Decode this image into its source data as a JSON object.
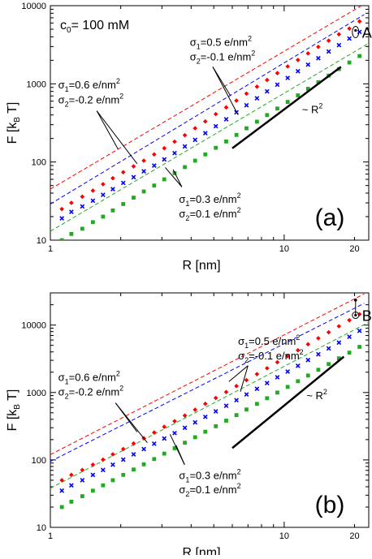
{
  "chart_data": [
    {
      "type": "scatter",
      "panel_label": "(a)",
      "annotation_top": "c",
      "annotation_top_sub": "0",
      "annotation_top_rest": "= 100 mM",
      "xlabel": "R [nm]",
      "ylabel": "F [k",
      "ylabel_sub": "B",
      "ylabel_end": " T]",
      "x_scale": "log",
      "y_scale": "log",
      "xlim": [
        1,
        23
      ],
      "ylim": [
        10,
        10000
      ],
      "x_ticks": [
        {
          "v": 1,
          "label": "1"
        },
        {
          "v": 10,
          "label": "10"
        },
        {
          "v": 20,
          "label": "20"
        }
      ],
      "y_ticks": [
        {
          "v": 10,
          "label": "10"
        },
        {
          "v": 100,
          "label": "100"
        },
        {
          "v": 1000,
          "label": "1000"
        },
        {
          "v": 10000,
          "label": "10000"
        }
      ],
      "point_label": "A",
      "slope_label": "~ R",
      "slope_label_sup": "2",
      "slope_line": {
        "x": [
          6,
          17.5
        ],
        "y": [
          150,
          1650
        ]
      },
      "series": [
        {
          "key": "s1",
          "color": "#ff0000",
          "marker": "diamond",
          "x": [
            1.12,
            1.23,
            1.37,
            1.52,
            1.68,
            1.85,
            2.05,
            2.27,
            2.51,
            2.78,
            3.07,
            3.4,
            3.76,
            4.16,
            4.6,
            5.1,
            5.65,
            6.25,
            6.9,
            7.65,
            8.45,
            9.35,
            10.35,
            11.45,
            12.65,
            14.0,
            15.5,
            17.15,
            19.0,
            21.0
          ],
          "y": [
            25,
            30,
            36,
            43,
            52,
            62,
            74,
            88,
            104,
            125,
            150,
            182,
            220,
            270,
            330,
            410,
            500,
            610,
            750,
            920,
            1120,
            1370,
            1670,
            2020,
            2450,
            2970,
            3570,
            4300,
            5100,
            6300
          ]
        },
        {
          "key": "s2",
          "color": "#0000ff",
          "marker": "x",
          "x": [
            1.12,
            1.23,
            1.37,
            1.52,
            1.68,
            1.85,
            2.05,
            2.27,
            2.51,
            2.78,
            3.07,
            3.4,
            3.76,
            4.16,
            4.6,
            5.1,
            5.65,
            6.25,
            6.9,
            7.65,
            8.45,
            9.35,
            10.35,
            11.45,
            12.65,
            14.0,
            15.5,
            17.15,
            19.0,
            21.0
          ],
          "y": [
            19,
            23,
            27,
            32,
            38,
            45,
            54,
            64,
            76,
            90,
            108,
            130,
            158,
            192,
            234,
            287,
            352,
            433,
            532,
            654,
            800,
            975,
            1190,
            1450,
            1760,
            2130,
            2590,
            3130,
            3800,
            4620
          ]
        },
        {
          "key": "s3",
          "color": "#22aa22",
          "marker": "square",
          "x": [
            1.12,
            1.23,
            1.37,
            1.52,
            1.68,
            1.85,
            2.05,
            2.27,
            2.51,
            2.78,
            3.07,
            3.4,
            3.76,
            4.16,
            4.6,
            5.1,
            5.65,
            6.25,
            6.9,
            7.65,
            8.45,
            9.35,
            10.35,
            11.45,
            12.65,
            14.0,
            15.5,
            17.15,
            19.0,
            21.0
          ],
          "y": [
            10,
            12,
            14,
            17,
            20,
            24,
            29,
            35,
            42,
            50,
            60,
            72,
            86,
            104,
            125,
            152,
            183,
            222,
            270,
            328,
            398,
            483,
            587,
            712,
            864,
            1050,
            1275,
            1545,
            1875,
            2270
          ]
        }
      ],
      "dashed_lines": [
        {
          "color": "#ff0000",
          "x": [
            1,
            22
          ],
          "y": [
            45,
            10500
          ]
        },
        {
          "color": "#0000ff",
          "x": [
            1,
            22
          ],
          "y": [
            29,
            7700
          ]
        },
        {
          "color": "#22aa22",
          "x": [
            1,
            23
          ],
          "y": [
            13,
            3300
          ]
        }
      ],
      "annotations": [
        {
          "sig1": "0.6 e/nm",
          "sig2": "-0.2 e/nm",
          "x": 1.08,
          "y1": 870,
          "y2": 560,
          "leaders": [
            [
              1.58,
              450,
              1.95,
              145
            ],
            [
              1.58,
              450,
              2.35,
              95
            ]
          ]
        },
        {
          "sig1": "0.5 e/nm",
          "sig2": "-0.1 e/nm",
          "x": 3.95,
          "y1": 3050,
          "y2": 2000,
          "leaders": [
            [
              4.95,
              1650,
              5.9,
              700
            ],
            [
              4.95,
              1650,
              6.35,
              400
            ]
          ]
        },
        {
          "sig1": "0.3 e/nm",
          "sig2": "0.1 e/nm",
          "x": 3.55,
          "y1": 30,
          "y2": 19.5,
          "leaders": [
            [
              3.65,
              48,
              3.1,
              85
            ],
            [
              3.65,
              48,
              3.35,
              80
            ]
          ]
        }
      ]
    },
    {
      "type": "scatter",
      "panel_label": "(b)",
      "xlabel": "R [nm]",
      "ylabel": "F [k",
      "ylabel_sub": "B",
      "ylabel_end": " T]",
      "x_scale": "log",
      "y_scale": "log",
      "xlim": [
        1,
        23
      ],
      "ylim": [
        10,
        30000
      ],
      "x_ticks": [
        {
          "v": 1,
          "label": "1"
        },
        {
          "v": 10,
          "label": "10"
        },
        {
          "v": 20,
          "label": "20"
        }
      ],
      "y_ticks": [
        {
          "v": 10,
          "label": "10"
        },
        {
          "v": 100,
          "label": "100"
        },
        {
          "v": 1000,
          "label": "1000"
        },
        {
          "v": 10000,
          "label": "10000"
        }
      ],
      "point_label": "B",
      "slope_label": "~ R",
      "slope_label_sup": "2",
      "slope_line": {
        "x": [
          6,
          18
        ],
        "y": [
          150,
          3400
        ]
      },
      "series": [
        {
          "key": "s1",
          "color": "#ff0000",
          "marker": "diamond",
          "x": [
            1.12,
            1.23,
            1.37,
            1.52,
            1.68,
            1.85,
            2.05,
            2.27,
            2.51,
            2.78,
            3.07,
            3.4,
            3.76,
            4.16,
            4.6,
            5.1,
            5.65,
            6.25,
            6.9,
            7.65,
            8.45,
            9.35,
            10.35,
            11.45,
            12.65,
            14.0,
            15.5,
            17.15,
            19.0,
            21.0
          ],
          "y": [
            50,
            60,
            71,
            85,
            101,
            121,
            145,
            175,
            210,
            255,
            310,
            375,
            455,
            555,
            680,
            830,
            1015,
            1245,
            1525,
            1870,
            2290,
            2810,
            3450,
            4230,
            5190,
            6370,
            7820,
            9600,
            11800,
            14500
          ]
        },
        {
          "key": "s2",
          "color": "#0000ff",
          "marker": "x",
          "x": [
            1.12,
            1.23,
            1.37,
            1.52,
            1.68,
            1.85,
            2.05,
            2.27,
            2.51,
            2.78,
            3.07,
            3.4,
            3.76,
            4.16,
            4.6,
            5.1,
            5.65,
            6.25,
            6.9,
            7.65,
            8.45,
            9.35,
            10.35,
            11.45,
            12.65,
            14.0,
            15.5,
            17.15,
            19.0,
            21.0
          ],
          "y": [
            35,
            42,
            50,
            60,
            71,
            85,
            101,
            121,
            145,
            174,
            208,
            250,
            300,
            360,
            435,
            525,
            635,
            770,
            935,
            1135,
            1380,
            1680,
            2045,
            2490,
            3030,
            3690,
            4500,
            5490,
            6700,
            8200
          ]
        },
        {
          "key": "s3",
          "color": "#22aa22",
          "marker": "square",
          "x": [
            1.12,
            1.23,
            1.37,
            1.52,
            1.68,
            1.85,
            2.05,
            2.27,
            2.51,
            2.78,
            3.07,
            3.4,
            3.76,
            4.16,
            4.6,
            5.1,
            5.65,
            6.25,
            6.9,
            7.65,
            8.45,
            9.35,
            10.35,
            11.45,
            12.65,
            14.0,
            15.5,
            17.15,
            19.0,
            21.0
          ],
          "y": [
            20,
            24,
            29,
            35,
            42,
            50,
            60,
            72,
            86,
            103,
            124,
            149,
            180,
            217,
            262,
            316,
            382,
            462,
            560,
            678,
            822,
            997,
            1210,
            1470,
            1785,
            2170,
            2640,
            3210,
            3900,
            4750
          ]
        }
      ],
      "dashed_lines": [
        {
          "color": "#ff0000",
          "x": [
            1,
            22
          ],
          "y": [
            120,
            29000
          ]
        },
        {
          "color": "#0000ff",
          "x": [
            1,
            22
          ],
          "y": [
            95,
            21000
          ]
        },
        {
          "color": "#22aa22",
          "x": [
            1,
            23
          ],
          "y": [
            38,
            11000
          ]
        }
      ],
      "annotations": [
        {
          "sig1": "0.6 e/nm",
          "sig2": "-0.2 e/nm",
          "x": 1.08,
          "y1": 1480,
          "y2": 900,
          "leaders": [
            [
              1.9,
              700,
              2.35,
              260
            ],
            [
              1.9,
              700,
              2.6,
              180
            ]
          ]
        },
        {
          "sig1": "0.5 e/nm",
          "sig2": "-0.1 e/nm",
          "x": 6.35,
          "y1": 5100,
          "y2": 3100,
          "leaders": [
            [
              7.0,
              2500,
              5.8,
              1450
            ],
            [
              7.0,
              2500,
              6.5,
              1030
            ]
          ]
        },
        {
          "sig1": "0.3 e/nm",
          "sig2": "0.1 e/nm",
          "x": 3.55,
          "y1": 52,
          "y2": 32,
          "leaders": [
            [
              3.75,
              85,
              3.25,
              240
            ],
            [
              3.75,
              85,
              3.45,
              165
            ]
          ]
        }
      ]
    }
  ]
}
